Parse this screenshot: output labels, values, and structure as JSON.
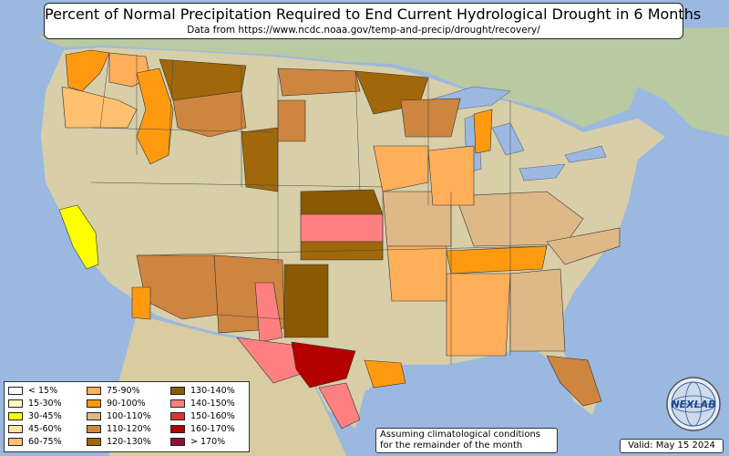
{
  "header": {
    "title": "Percent of Normal Precipitation Required to End Current Hydrological Drought in 6 Months",
    "subtitle": "Data from https://www.ncdc.noaa.gov/temp-and-precip/drought/recovery/"
  },
  "legend": {
    "items": [
      {
        "label": "< 15%",
        "color": "#ffffff"
      },
      {
        "label": "15-30%",
        "color": "#ffffc8"
      },
      {
        "label": "30-45%",
        "color": "#ffff00"
      },
      {
        "label": "45-60%",
        "color": "#ffe6a0"
      },
      {
        "label": "60-75%",
        "color": "#ffc070"
      },
      {
        "label": "75-90%",
        "color": "#ffae5a"
      },
      {
        "label": "90-100%",
        "color": "#ff9a10"
      },
      {
        "label": "100-110%",
        "color": "#deb887"
      },
      {
        "label": "110-120%",
        "color": "#cd853f"
      },
      {
        "label": "120-130%",
        "color": "#a0680a"
      },
      {
        "label": "130-140%",
        "color": "#8b5a00"
      },
      {
        "label": "140-150%",
        "color": "#ff8080"
      },
      {
        "label": "150-160%",
        "color": "#dc3232"
      },
      {
        "label": "160-170%",
        "color": "#b40000"
      },
      {
        "label": "> 170%",
        "color": "#8c1040"
      }
    ]
  },
  "note": {
    "line1": "Assuming climatological conditions",
    "line2": "for the remainder of the month"
  },
  "valid": "Valid: May 15 2024",
  "logo": {
    "icon": "nexlab-globe-logo",
    "text": "NEXLAB"
  },
  "colors": {
    "ocean": "#9bb8e0",
    "land": "#d6d0b0",
    "canada": "#b8c8a0"
  }
}
